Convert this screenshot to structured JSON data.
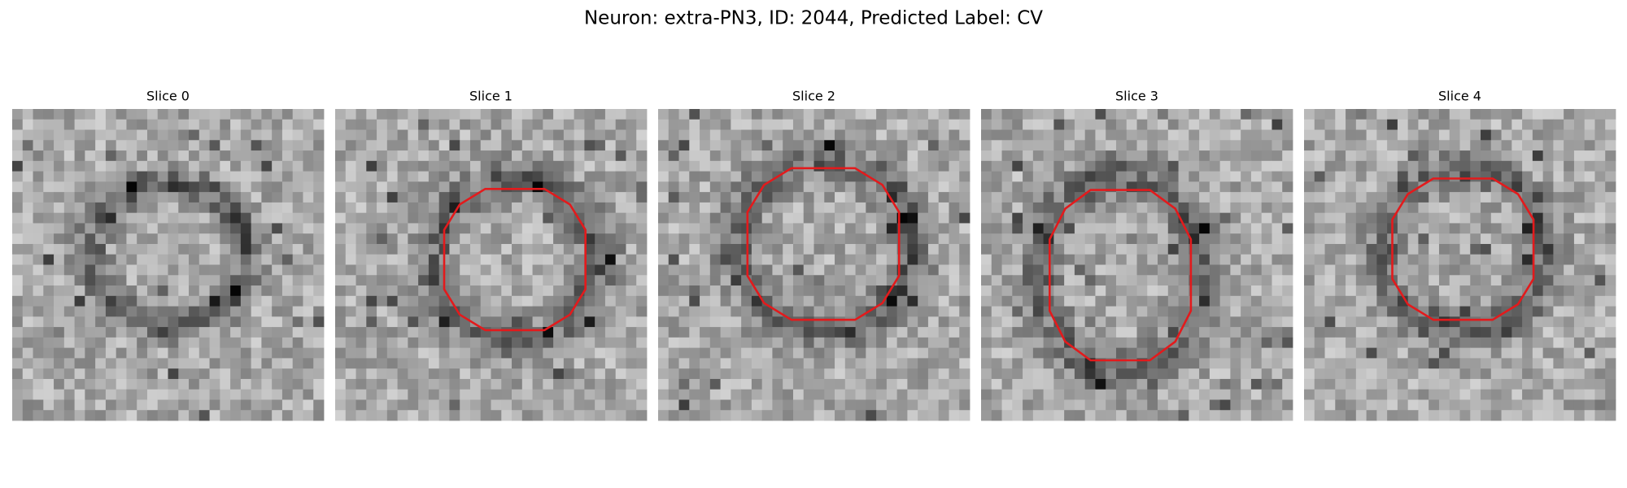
{
  "title": "Neuron: extra-PN3, ID: 2044, Predicted Label: CV",
  "panels": [
    {
      "title": "Slice 0"
    },
    {
      "title": "Slice 1"
    },
    {
      "title": "Slice 2"
    },
    {
      "title": "Slice 3"
    },
    {
      "title": "Slice 4"
    }
  ]
}
